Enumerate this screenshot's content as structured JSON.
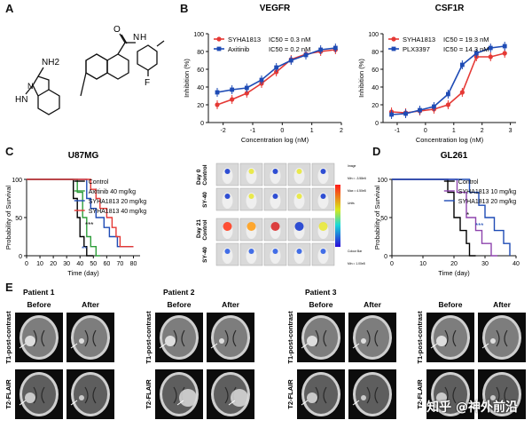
{
  "panels": {
    "A": "A",
    "B": "B",
    "C": "C",
    "D": "D",
    "E": "E"
  },
  "molecule": {
    "atoms": [
      "NH2",
      "HN",
      "N",
      "N",
      "H",
      "O",
      "F"
    ]
  },
  "vegfr": {
    "title": "VEGFR",
    "ylabel": "Inhibition (%)",
    "xlabel": "Concentration log (nM)",
    "legend": [
      {
        "name": "SYHA1813",
        "ic": "IC50 = 0.3 nM",
        "color": "#e53935"
      },
      {
        "name": "Axitinib",
        "ic": "IC50 = 0.2 nM",
        "color": "#1e4bb5"
      }
    ]
  },
  "csf1r": {
    "title": "CSF1R",
    "ylabel": "Inhibition (%)",
    "xlabel": "Concentration log (nM)",
    "legend": [
      {
        "name": "SYHA1813",
        "ic": "IC50 = 19.3 nM",
        "color": "#e53935"
      },
      {
        "name": "PLX3397",
        "ic": "IC50 = 14.3 nM",
        "color": "#1e4bb5"
      }
    ]
  },
  "u87": {
    "title": "U87MG",
    "ylabel": "Probability of Survival",
    "xlabel": "Time (day)",
    "legend": [
      {
        "name": "Control",
        "color": "#000000"
      },
      {
        "name": "Axitinib 40 mg/kg",
        "color": "#2e9e3a"
      },
      {
        "name": "SYHA1813 20 mg/kg",
        "color": "#1e4bb5"
      },
      {
        "name": "SYHA1813 40 mg/kg",
        "color": "#e53935"
      }
    ],
    "stars": [
      "***",
      "**"
    ]
  },
  "imaging": {
    "rows": [
      "Control",
      "SY-40",
      "Control",
      "SY-40"
    ],
    "days": [
      "Day 0",
      "Day 21"
    ],
    "scale": [
      "Image",
      "Min = -3.58e6",
      "Max = 4.50e8",
      "Units",
      "Colour Bar",
      "Min = 1.00e8",
      "Max = 1.00e9"
    ]
  },
  "gl261": {
    "title": "GL261",
    "ylabel": "Probability of Survival",
    "xlabel": "Time (day)",
    "legend": [
      {
        "name": "Control",
        "color": "#000000"
      },
      {
        "name": "SYHA1813 10 mg/kg",
        "color": "#8e44ad"
      },
      {
        "name": "SYHA1813 20 mg/kg",
        "color": "#1e4bb5"
      }
    ],
    "stars": [
      "*",
      "***"
    ]
  },
  "mri": {
    "patients": [
      "Patient 1",
      "Patient 2",
      "Patient 3",
      ""
    ],
    "before": "Before",
    "after": "After",
    "row_labels": [
      "T1-post-contrast",
      "T2-FLAIR"
    ]
  },
  "watermark": "知乎 @神外前沿",
  "chart_data": [
    {
      "type": "line",
      "title": "VEGFR",
      "xlabel": "Concentration log (nM)",
      "ylabel": "Inhibition (%)",
      "xlim": [
        -2.5,
        2
      ],
      "ylim": [
        0,
        100
      ],
      "xticks": [
        -2,
        -1,
        0,
        1,
        2
      ],
      "yticks": [
        0,
        20,
        40,
        60,
        80,
        100
      ],
      "series": [
        {
          "name": "SYHA1813",
          "x": [
            -2.2,
            -1.7,
            -1.2,
            -0.7,
            -0.2,
            0.3,
            0.8,
            1.3,
            1.8
          ],
          "y": [
            20,
            26,
            33,
            44,
            57,
            71,
            77,
            80,
            82
          ]
        },
        {
          "name": "Axitinib",
          "x": [
            -2.2,
            -1.7,
            -1.2,
            -0.7,
            -0.2,
            0.3,
            0.8,
            1.3,
            1.8
          ],
          "y": [
            34,
            37,
            39,
            48,
            62,
            70,
            76,
            82,
            84
          ]
        }
      ]
    },
    {
      "type": "line",
      "title": "CSF1R",
      "xlabel": "Concentration log (nM)",
      "ylabel": "Inhibition (%)",
      "xlim": [
        -1.5,
        3.2
      ],
      "ylim": [
        0,
        100
      ],
      "xticks": [
        -1,
        0,
        1,
        2,
        3
      ],
      "yticks": [
        0,
        20,
        40,
        60,
        80,
        100
      ],
      "series": [
        {
          "name": "SYHA1813",
          "x": [
            -1.2,
            -0.7,
            -0.2,
            0.3,
            0.8,
            1.3,
            1.8,
            2.3,
            2.8
          ],
          "y": [
            12,
            11,
            13,
            15,
            20,
            34,
            74,
            74,
            78
          ]
        },
        {
          "name": "PLX3397",
          "x": [
            -1.2,
            -0.7,
            -0.2,
            0.3,
            0.8,
            1.3,
            1.8,
            2.3,
            2.8
          ],
          "y": [
            9,
            10,
            14,
            18,
            32,
            65,
            78,
            84,
            86
          ]
        }
      ]
    },
    {
      "type": "line",
      "title": "U87MG",
      "xlabel": "Time (day)",
      "ylabel": "Probability of Survival",
      "xlim": [
        0,
        85
      ],
      "ylim": [
        0,
        100
      ],
      "xticks": [
        0,
        10,
        20,
        30,
        40,
        50,
        60,
        70,
        80
      ],
      "yticks": [
        0,
        50,
        100
      ],
      "series": [
        {
          "name": "Control",
          "steps": [
            [
              0,
              100
            ],
            [
              35,
              100
            ],
            [
              35,
              75
            ],
            [
              38,
              75
            ],
            [
              38,
              50
            ],
            [
              40,
              50
            ],
            [
              40,
              25
            ],
            [
              43,
              25
            ],
            [
              43,
              12
            ],
            [
              45,
              12
            ],
            [
              45,
              0
            ],
            [
              50,
              0
            ]
          ]
        },
        {
          "name": "Axitinib 40 mg/kg",
          "steps": [
            [
              0,
              100
            ],
            [
              38,
              100
            ],
            [
              38,
              83
            ],
            [
              42,
              83
            ],
            [
              42,
              50
            ],
            [
              45,
              50
            ],
            [
              45,
              25
            ],
            [
              48,
              25
            ],
            [
              48,
              12
            ],
            [
              52,
              12
            ],
            [
              52,
              0
            ],
            [
              55,
              0
            ]
          ]
        },
        {
          "name": "SYHA1813 20 mg/kg",
          "steps": [
            [
              0,
              100
            ],
            [
              45,
              100
            ],
            [
              45,
              75
            ],
            [
              48,
              75
            ],
            [
              48,
              62
            ],
            [
              52,
              62
            ],
            [
              52,
              50
            ],
            [
              58,
              50
            ],
            [
              58,
              37
            ],
            [
              62,
              37
            ],
            [
              62,
              25
            ],
            [
              68,
              25
            ],
            [
              68,
              12
            ],
            [
              80,
              12
            ]
          ]
        },
        {
          "name": "SYHA1813 40 mg/kg",
          "steps": [
            [
              0,
              100
            ],
            [
              48,
              100
            ],
            [
              48,
              87
            ],
            [
              52,
              87
            ],
            [
              52,
              75
            ],
            [
              55,
              75
            ],
            [
              55,
              62
            ],
            [
              60,
              62
            ],
            [
              60,
              50
            ],
            [
              64,
              50
            ],
            [
              64,
              37
            ],
            [
              67,
              37
            ],
            [
              67,
              25
            ],
            [
              70,
              25
            ],
            [
              70,
              12
            ],
            [
              80,
              12
            ]
          ]
        }
      ]
    },
    {
      "type": "line",
      "title": "GL261",
      "xlabel": "Time (day)",
      "ylabel": "Probability of Survival",
      "xlim": [
        0,
        40
      ],
      "ylim": [
        0,
        100
      ],
      "xticks": [
        0,
        10,
        20,
        30,
        40
      ],
      "yticks": [
        0,
        50,
        100
      ],
      "series": [
        {
          "name": "Control",
          "steps": [
            [
              0,
              100
            ],
            [
              18,
              100
            ],
            [
              18,
              83
            ],
            [
              20,
              83
            ],
            [
              20,
              50
            ],
            [
              22,
              50
            ],
            [
              22,
              33
            ],
            [
              24,
              33
            ],
            [
              24,
              16
            ],
            [
              25,
              16
            ],
            [
              25,
              0
            ],
            [
              27,
              0
            ]
          ]
        },
        {
          "name": "SYHA1813 10 mg/kg",
          "steps": [
            [
              0,
              100
            ],
            [
              21,
              100
            ],
            [
              21,
              83
            ],
            [
              24,
              83
            ],
            [
              24,
              50
            ],
            [
              27,
              50
            ],
            [
              27,
              33
            ],
            [
              29,
              33
            ],
            [
              29,
              16
            ],
            [
              32,
              16
            ],
            [
              32,
              0
            ],
            [
              34,
              0
            ]
          ]
        },
        {
          "name": "SYHA1813 20 mg/kg",
          "steps": [
            [
              0,
              100
            ],
            [
              25,
              100
            ],
            [
              25,
              83
            ],
            [
              28,
              83
            ],
            [
              28,
              66
            ],
            [
              30,
              66
            ],
            [
              30,
              50
            ],
            [
              33,
              50
            ],
            [
              33,
              33
            ],
            [
              36,
              33
            ],
            [
              36,
              16
            ],
            [
              38,
              16
            ],
            [
              38,
              0
            ]
          ]
        }
      ]
    }
  ]
}
